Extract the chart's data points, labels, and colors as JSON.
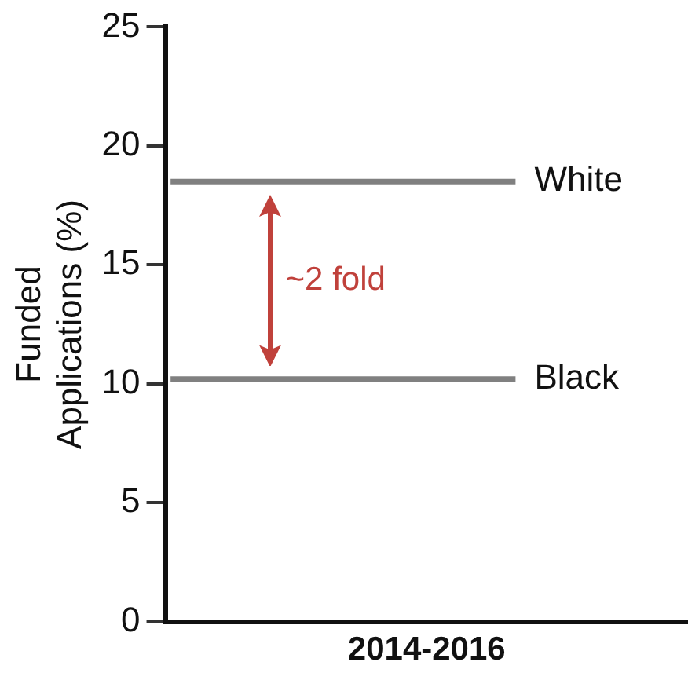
{
  "chart_data": {
    "type": "line",
    "ylabel": "Funded Applications (%)",
    "categories": [
      "2014-2016"
    ],
    "ref_lines": [
      {
        "axis": "y",
        "value": 18.5,
        "label": "White",
        "color": "#808080",
        "line_style": "solid"
      },
      {
        "axis": "y",
        "value": 10.2,
        "label": "Black",
        "color": "#808080",
        "line_style": "solid"
      }
    ],
    "ylim": [
      0,
      25
    ],
    "yticks": [
      0,
      5,
      10,
      15,
      20,
      25
    ],
    "grid": false,
    "legend": false,
    "annotations": [
      "~2 fold"
    ]
  }
}
